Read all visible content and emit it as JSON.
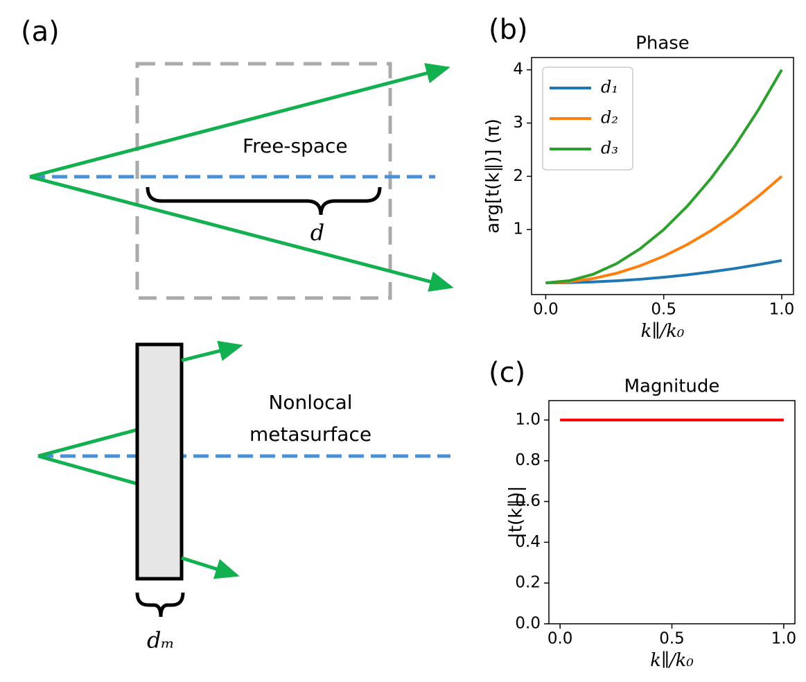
{
  "diagram": {
    "panel": "(a)",
    "top_label": "Free-space",
    "top_length": "d",
    "bottom_label_1": "Nonlocal",
    "bottom_label_2": "metasurface",
    "bottom_length": "dₘ"
  },
  "chart_data": [
    {
      "type": "line",
      "panel": "(b)",
      "title": "Phase",
      "x_label": "k∥/k₀",
      "y_label": "arg[t(k∥)] (π)",
      "x": [
        0,
        0.1,
        0.2,
        0.3,
        0.4,
        0.5,
        0.6,
        0.7,
        0.8,
        0.9,
        1.0
      ],
      "series": [
        {
          "name": "d₁",
          "color": "#1f77b4",
          "values": [
            0,
            0.004,
            0.017,
            0.038,
            0.067,
            0.105,
            0.151,
            0.206,
            0.269,
            0.34,
            0.42
          ]
        },
        {
          "name": "d₂",
          "color": "#ff7f0e",
          "values": [
            0,
            0.02,
            0.08,
            0.18,
            0.32,
            0.5,
            0.72,
            0.98,
            1.28,
            1.62,
            2.0
          ]
        },
        {
          "name": "d₃",
          "color": "#2ca02c",
          "values": [
            0,
            0.04,
            0.16,
            0.36,
            0.64,
            1.0,
            1.44,
            1.96,
            2.56,
            3.24,
            4.0
          ]
        }
      ],
      "xlim": [
        -0.06,
        1.05
      ],
      "ylim": [
        -0.22,
        4.23
      ],
      "xticks": [
        {
          "value": 0,
          "label": "0.0"
        },
        {
          "value": 0.5,
          "label": "0.5"
        },
        {
          "value": 1,
          "label": "1.0"
        }
      ],
      "yticks": [
        1,
        2,
        3,
        4
      ],
      "legend": "upper left",
      "grid": false
    },
    {
      "type": "line",
      "panel": "(c)",
      "title": "Magnitude",
      "x_label": "k∥/k₀",
      "y_label": "|t(k∥)|",
      "x": [
        0,
        1.0
      ],
      "series": [
        {
          "color": "#ff0000",
          "values": [
            1.0,
            1.0
          ]
        }
      ],
      "xlim": [
        -0.05,
        1.05
      ],
      "ylim": [
        0,
        1.095
      ],
      "xticks": [
        {
          "value": 0,
          "label": "0.0"
        },
        {
          "value": 0.5,
          "label": "0.5"
        },
        {
          "value": 1,
          "label": "1.0"
        }
      ],
      "yticks": [
        {
          "value": 0,
          "label": "0.0"
        },
        {
          "value": 0.2,
          "label": "0.2"
        },
        {
          "value": 0.4,
          "label": "0.4"
        },
        {
          "value": 0.6,
          "label": "0.6"
        },
        {
          "value": 0.8,
          "label": "0.8"
        },
        {
          "value": 1,
          "label": "1.0"
        }
      ],
      "grid": false
    }
  ]
}
